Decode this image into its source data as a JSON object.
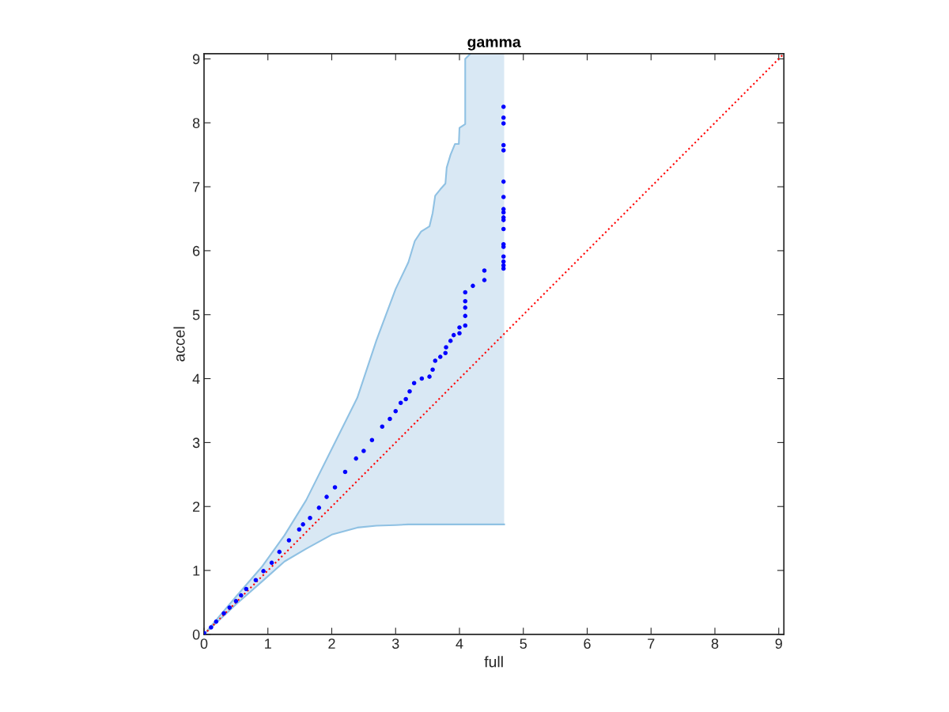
{
  "chart_data": {
    "type": "scatter",
    "title": "gamma",
    "xlabel": "full",
    "ylabel": "accel",
    "xlim": [
      0,
      9.08
    ],
    "ylim": [
      0,
      9.08
    ],
    "xticks": [
      0,
      1,
      2,
      3,
      4,
      5,
      6,
      7,
      8,
      9
    ],
    "yticks": [
      0,
      1,
      2,
      3,
      4,
      5,
      6,
      7,
      8,
      9
    ],
    "grid": false,
    "legend": false,
    "series": [
      {
        "type": "line",
        "color": "#d9e8f4",
        "values": [
          null,
          null,
          null,
          null,
          null,
          null,
          null,
          null,
          null,
          null,
          null,
          null,
          null,
          null,
          null,
          null,
          null,
          null,
          null,
          null,
          null,
          null,
          null,
          null,
          null,
          null
        ],
        "x": [
          0,
          0.5,
          0.9,
          1.26,
          1.6,
          2.0,
          2.4,
          2.7,
          3.0,
          3.2,
          3.3,
          3.4,
          3.53,
          3.58,
          3.62,
          3.7,
          3.78,
          3.8,
          3.86,
          3.93,
          3.99,
          4.0,
          4.09,
          4.09,
          4.17,
          4.7
        ],
        "lower": [
          0,
          0.47,
          0.82,
          1.14,
          1.34,
          1.56,
          1.67,
          1.7,
          1.71,
          1.72,
          1.72,
          1.72,
          1.72,
          1.72,
          1.72,
          1.72,
          1.72,
          1.72,
          1.72,
          1.72,
          1.72,
          1.72,
          1.72,
          1.72,
          1.72,
          1.72
        ],
        "upper": [
          0,
          0.59,
          1.05,
          1.55,
          2.1,
          2.9,
          3.7,
          4.6,
          5.4,
          5.82,
          6.15,
          6.3,
          6.38,
          6.59,
          6.86,
          6.96,
          7.05,
          7.3,
          7.5,
          7.67,
          7.67,
          7.92,
          7.98,
          9.0,
          9.08,
          9.08
        ]
      },
      {
        "type": "line",
        "color": "#8fc1e3",
        "marker": "none",
        "x": [
          0,
          0.5,
          0.9,
          1.26,
          1.6,
          2.0,
          2.4,
          2.7,
          3.0,
          3.2,
          3.3,
          3.4,
          3.53,
          3.58,
          3.62,
          3.7,
          3.78,
          3.8,
          3.86,
          3.93,
          3.99,
          4.0,
          4.09,
          4.09,
          4.17
        ],
        "values": [
          0,
          0.59,
          1.05,
          1.55,
          2.1,
          2.9,
          3.7,
          4.6,
          5.4,
          5.82,
          6.15,
          6.3,
          6.38,
          6.59,
          6.86,
          6.96,
          7.05,
          7.3,
          7.5,
          7.67,
          7.67,
          7.92,
          7.98,
          9.0,
          9.08
        ]
      },
      {
        "type": "line",
        "color": "#8fc1e3",
        "marker": "none",
        "x": [
          0,
          0.5,
          0.9,
          1.26,
          1.6,
          2.0,
          2.4,
          2.7,
          3.0,
          3.2,
          4.7
        ],
        "values": [
          0,
          0.47,
          0.82,
          1.14,
          1.34,
          1.56,
          1.67,
          1.7,
          1.71,
          1.72,
          1.72
        ]
      },
      {
        "type": "line",
        "color": "#ff0000",
        "line_style": "dotted",
        "marker": "none",
        "x": [
          0,
          9.08
        ],
        "values": [
          0,
          9.08
        ]
      },
      {
        "color": "#0000ff",
        "marker": "circle",
        "x": [
          0,
          0.11,
          0.19,
          0.31,
          0.4,
          0.5,
          0.58,
          0.66,
          0.81,
          0.93,
          1.06,
          1.18,
          1.33,
          1.49,
          1.55,
          1.66,
          1.8,
          1.92,
          2.05,
          2.21,
          2.38,
          2.5,
          2.63,
          2.79,
          2.91,
          3.0,
          3.08,
          3.16,
          3.22,
          3.29,
          3.41,
          3.53,
          3.58,
          3.62,
          3.7,
          3.78,
          3.79,
          3.86,
          3.91,
          4.0,
          4.0,
          4.09,
          4.09,
          4.09,
          4.09,
          4.09,
          4.21,
          4.39,
          4.39,
          4.69,
          4.69,
          4.69,
          4.69,
          4.69,
          4.69,
          4.69,
          4.69,
          4.69,
          4.69,
          4.69,
          4.69,
          4.69,
          4.69,
          4.69,
          4.69,
          4.69,
          4.69
        ],
        "values": [
          0.02,
          0.11,
          0.2,
          0.33,
          0.42,
          0.52,
          0.61,
          0.71,
          0.85,
          0.99,
          1.12,
          1.29,
          1.47,
          1.64,
          1.72,
          1.82,
          1.98,
          2.15,
          2.3,
          2.54,
          2.75,
          2.87,
          3.04,
          3.25,
          3.37,
          3.49,
          3.62,
          3.68,
          3.8,
          3.93,
          4.0,
          4.03,
          4.14,
          4.28,
          4.34,
          4.4,
          4.49,
          4.59,
          4.68,
          4.71,
          4.8,
          4.83,
          4.98,
          5.11,
          5.21,
          5.35,
          5.45,
          5.54,
          5.69,
          5.72,
          5.77,
          5.83,
          5.91,
          6.06,
          6.1,
          6.34,
          6.48,
          6.52,
          6.6,
          6.65,
          6.84,
          7.08,
          7.57,
          7.65,
          7.99,
          8.08,
          8.25
        ]
      }
    ]
  }
}
